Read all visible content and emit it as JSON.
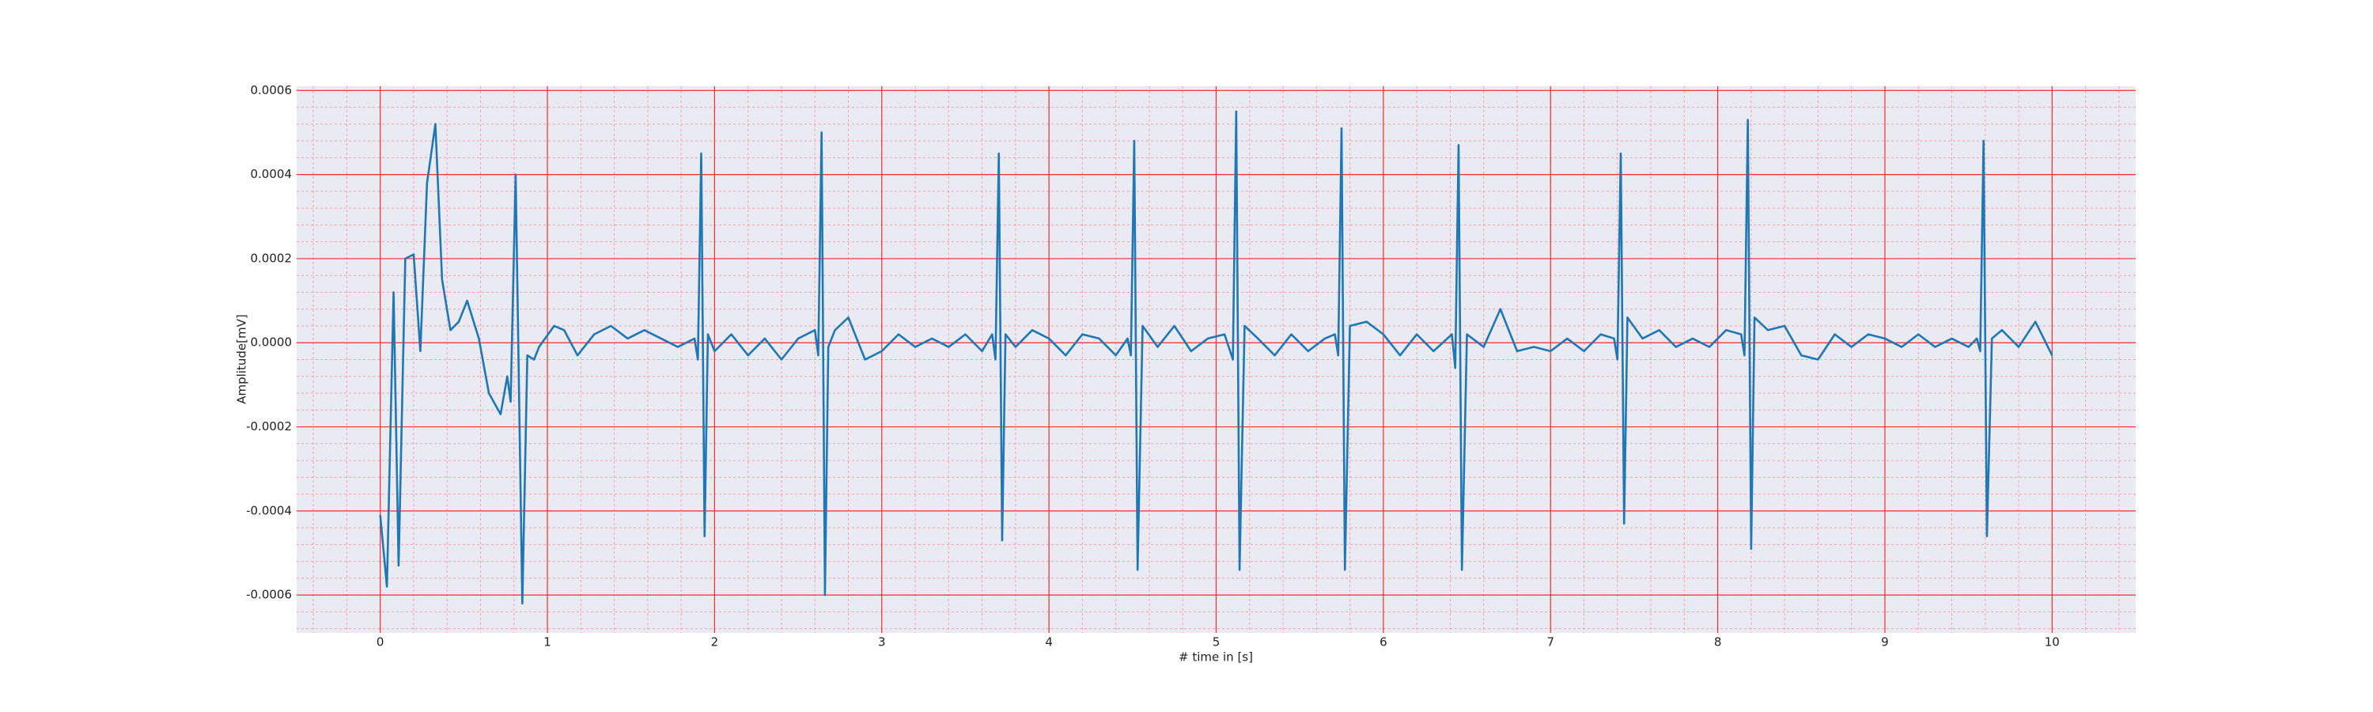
{
  "chart_data": {
    "type": "line",
    "x_label": "# time in [s]",
    "y_label": "Amplitude[mV]",
    "xlim": [
      -0.5,
      10.5
    ],
    "ylim": [
      -0.00069,
      0.00061
    ],
    "xticks": [
      0,
      1,
      2,
      3,
      4,
      5,
      6,
      7,
      8,
      9,
      10
    ],
    "yticks": [
      -0.0006,
      -0.0004,
      -0.0002,
      {
        "value": 0,
        "label": "0.0000"
      },
      0.0002,
      0.0004,
      0.0006
    ],
    "grid": true,
    "series": [
      {
        "color": "#1f77b4",
        "x": [
          0,
          0.04,
          0.08,
          0.11,
          0.15,
          0.2,
          0.24,
          0.28,
          0.33,
          0.37,
          0.42,
          0.47,
          0.52,
          0.59,
          0.65,
          0.72,
          0.76,
          0.78,
          0.81,
          0.85,
          0.88,
          0.92,
          0.95,
          1.04,
          1.1,
          1.18,
          1.28,
          1.38,
          1.48,
          1.58,
          1.68,
          1.78,
          1.88,
          1.9,
          1.92,
          1.94,
          1.96,
          2.0,
          2.1,
          2.2,
          2.3,
          2.4,
          2.5,
          2.6,
          2.62,
          2.64,
          2.66,
          2.68,
          2.72,
          2.8,
          2.9,
          3.0,
          3.1,
          3.2,
          3.3,
          3.4,
          3.5,
          3.6,
          3.66,
          3.68,
          3.7,
          3.72,
          3.74,
          3.8,
          3.9,
          4.0,
          4.1,
          4.2,
          4.3,
          4.4,
          4.47,
          4.49,
          4.51,
          4.53,
          4.56,
          4.65,
          4.75,
          4.85,
          4.95,
          5.05,
          5.1,
          5.12,
          5.14,
          5.17,
          5.25,
          5.35,
          5.45,
          5.55,
          5.65,
          5.71,
          5.73,
          5.75,
          5.77,
          5.8,
          5.9,
          6.0,
          6.1,
          6.2,
          6.3,
          6.41,
          6.43,
          6.45,
          6.47,
          6.5,
          6.6,
          6.7,
          6.8,
          6.9,
          7.0,
          7.1,
          7.2,
          7.3,
          7.38,
          7.4,
          7.42,
          7.44,
          7.46,
          7.55,
          7.65,
          7.75,
          7.85,
          7.95,
          8.05,
          8.14,
          8.16,
          8.18,
          8.2,
          8.22,
          8.3,
          8.4,
          8.5,
          8.6,
          8.7,
          8.8,
          8.9,
          9.0,
          9.1,
          9.2,
          9.3,
          9.4,
          9.5,
          9.55,
          9.57,
          9.59,
          9.61,
          9.64,
          9.7,
          9.8,
          9.9,
          10.0
        ],
        "values": [
          -0.00041,
          -0.00058,
          0.00012,
          -0.00053,
          0.0002,
          0.00021,
          -2e-05,
          0.00038,
          0.00052,
          0.00015,
          3e-05,
          5e-05,
          0.0001,
          1e-05,
          -0.00012,
          -0.00017,
          -8e-05,
          -0.00014,
          0.0004,
          -0.00062,
          -3e-05,
          -4e-05,
          -1e-05,
          4e-05,
          3e-05,
          -3e-05,
          2e-05,
          4e-05,
          1e-05,
          3e-05,
          1e-05,
          -1e-05,
          1e-05,
          -4e-05,
          0.00045,
          -0.00046,
          2e-05,
          -2e-05,
          2e-05,
          -3e-05,
          1e-05,
          -4e-05,
          1e-05,
          3e-05,
          -3e-05,
          0.0005,
          -0.0006,
          -1e-05,
          3e-05,
          6e-05,
          -4e-05,
          -2e-05,
          2e-05,
          -1e-05,
          1e-05,
          -1e-05,
          2e-05,
          -2e-05,
          2e-05,
          -4e-05,
          0.00045,
          -0.00047,
          2e-05,
          -1e-05,
          3e-05,
          1e-05,
          -3e-05,
          2e-05,
          1e-05,
          -3e-05,
          1e-05,
          -3e-05,
          0.00048,
          -0.00054,
          4e-05,
          -1e-05,
          4e-05,
          -2e-05,
          1e-05,
          2e-05,
          -4e-05,
          0.00055,
          -0.00054,
          4e-05,
          1e-05,
          -3e-05,
          2e-05,
          -2e-05,
          1e-05,
          2e-05,
          -3e-05,
          0.00051,
          -0.00054,
          4e-05,
          5e-05,
          2e-05,
          -3e-05,
          2e-05,
          -2e-05,
          2e-05,
          -6e-05,
          0.00047,
          -0.00054,
          2e-05,
          -1e-05,
          8e-05,
          -2e-05,
          -1e-05,
          -2e-05,
          1e-05,
          -2e-05,
          2e-05,
          1e-05,
          -4e-05,
          0.00045,
          -0.00043,
          6e-05,
          1e-05,
          3e-05,
          -1e-05,
          1e-05,
          -1e-05,
          3e-05,
          2e-05,
          -3e-05,
          0.00053,
          -0.00049,
          6e-05,
          3e-05,
          4e-05,
          -3e-05,
          -4e-05,
          2e-05,
          -1e-05,
          2e-05,
          1e-05,
          -1e-05,
          2e-05,
          -1e-05,
          1e-05,
          -1e-05,
          1e-05,
          -2e-05,
          0.00048,
          -0.00046,
          1e-05,
          3e-05,
          -1e-05,
          5e-05,
          -3e-05
        ]
      }
    ]
  }
}
